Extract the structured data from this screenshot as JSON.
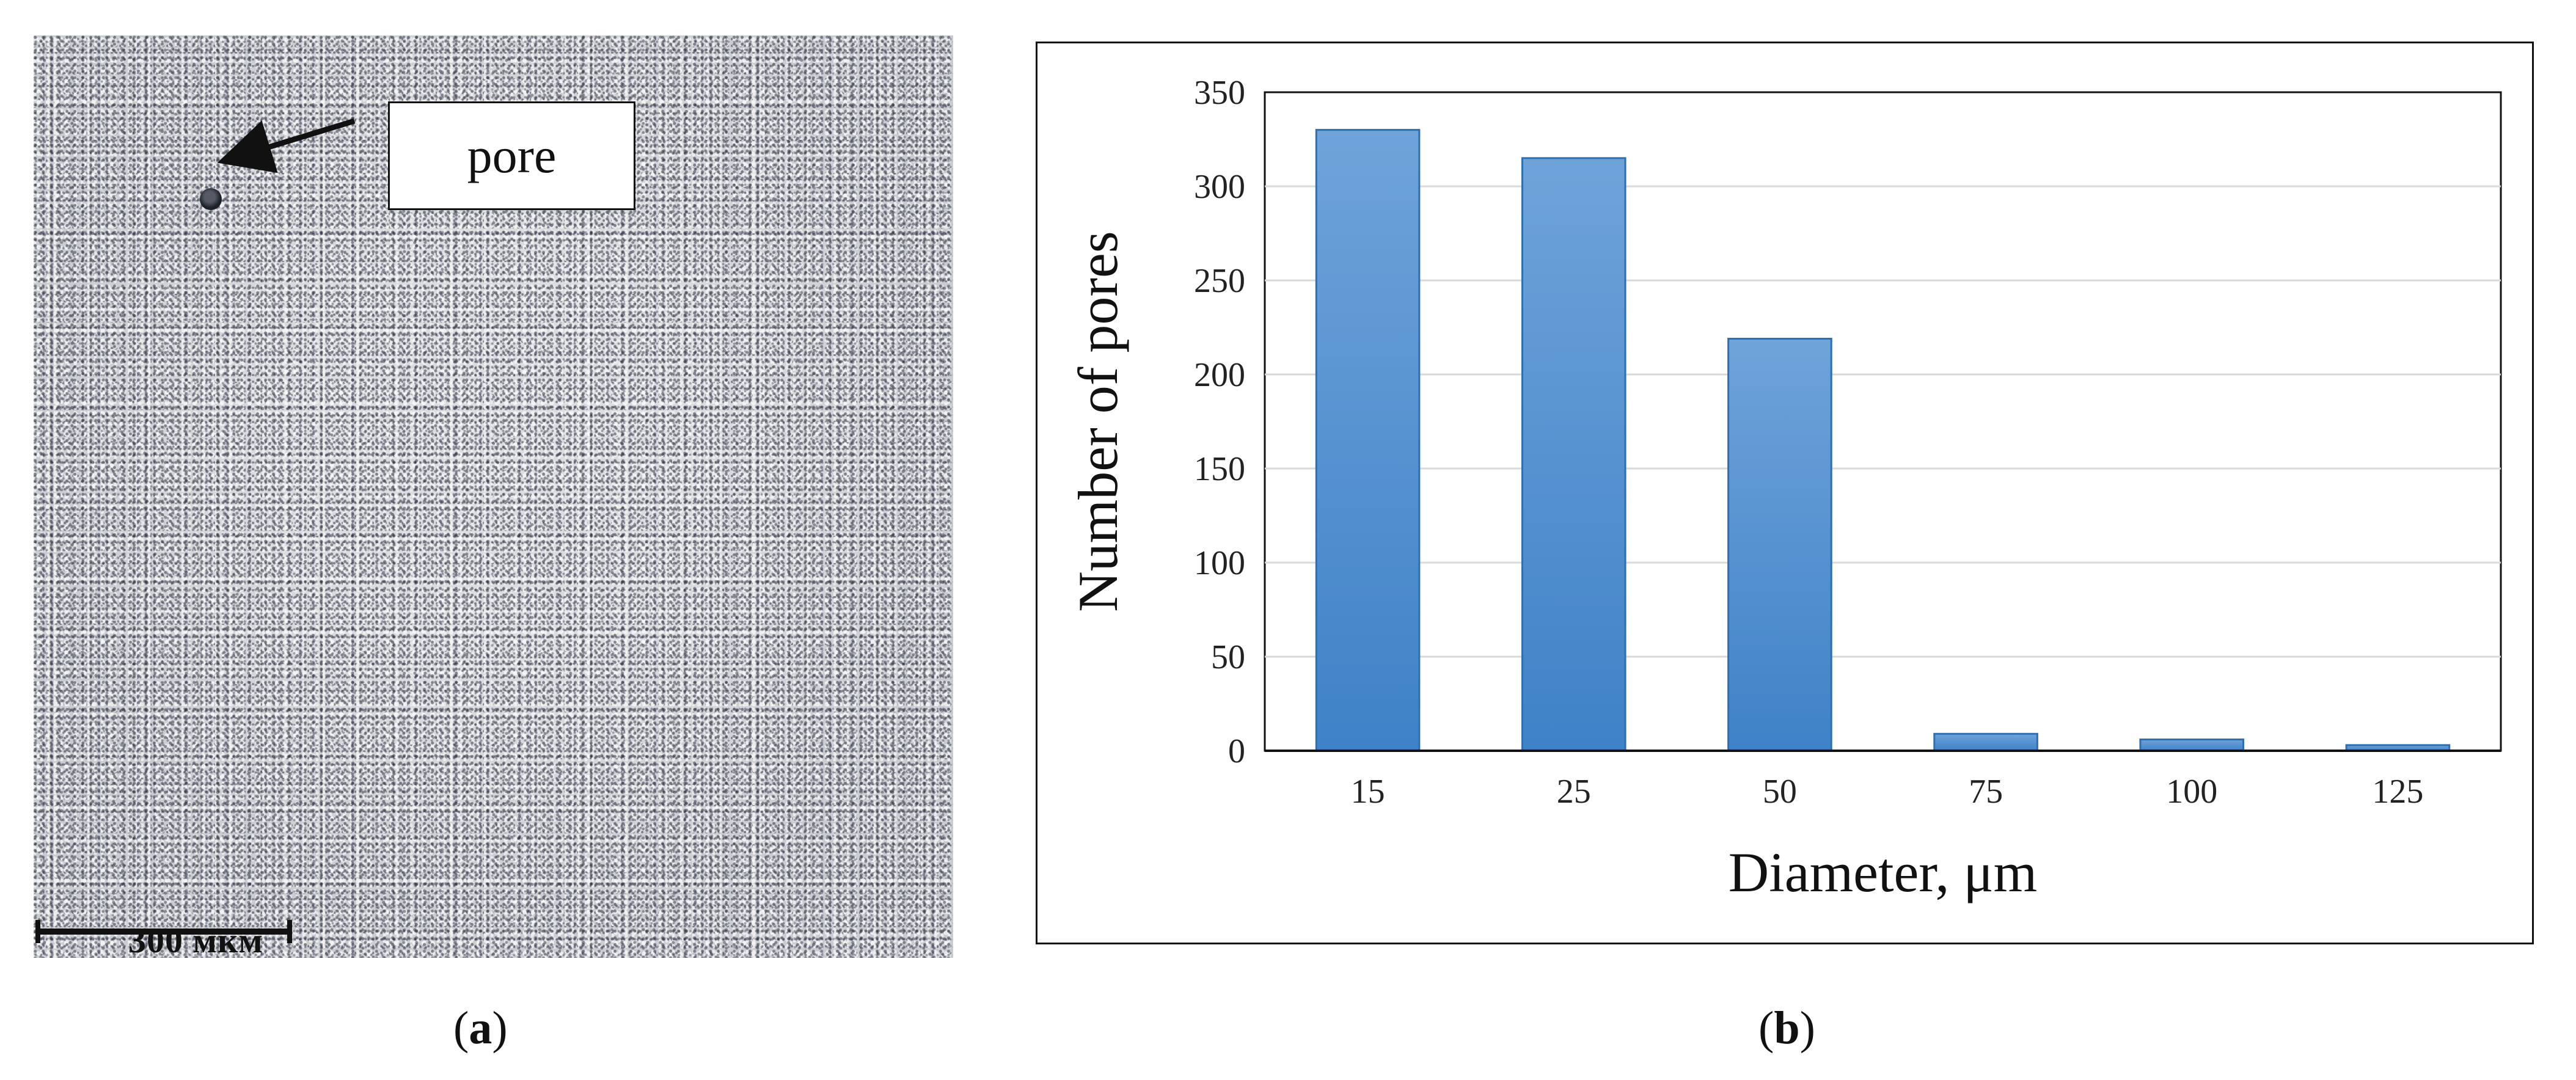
{
  "panel_a": {
    "caption_open": "(",
    "caption_letter": "a",
    "caption_close": ")",
    "callout_text": "pore",
    "scale_label": "300 мкм"
  },
  "panel_b": {
    "caption_open": "(",
    "caption_letter": "b",
    "caption_close": ")"
  },
  "colors": {
    "bar_fill_top": "#6fa3da",
    "bar_fill_bottom": "#3f82c7",
    "bar_stroke": "#2f6fae",
    "grid": "#d9d9d9",
    "axis": "#111111"
  },
  "chart_data": {
    "type": "bar",
    "categories": [
      "15",
      "25",
      "50",
      "75",
      "100",
      "125"
    ],
    "values": [
      330,
      315,
      219,
      9,
      6,
      3
    ],
    "xlabel": "Diameter, μm",
    "ylabel": "Number of pores",
    "ylim": [
      0,
      350
    ],
    "yticks": [
      0,
      50,
      100,
      150,
      200,
      250,
      300,
      350
    ],
    "grid": true
  }
}
